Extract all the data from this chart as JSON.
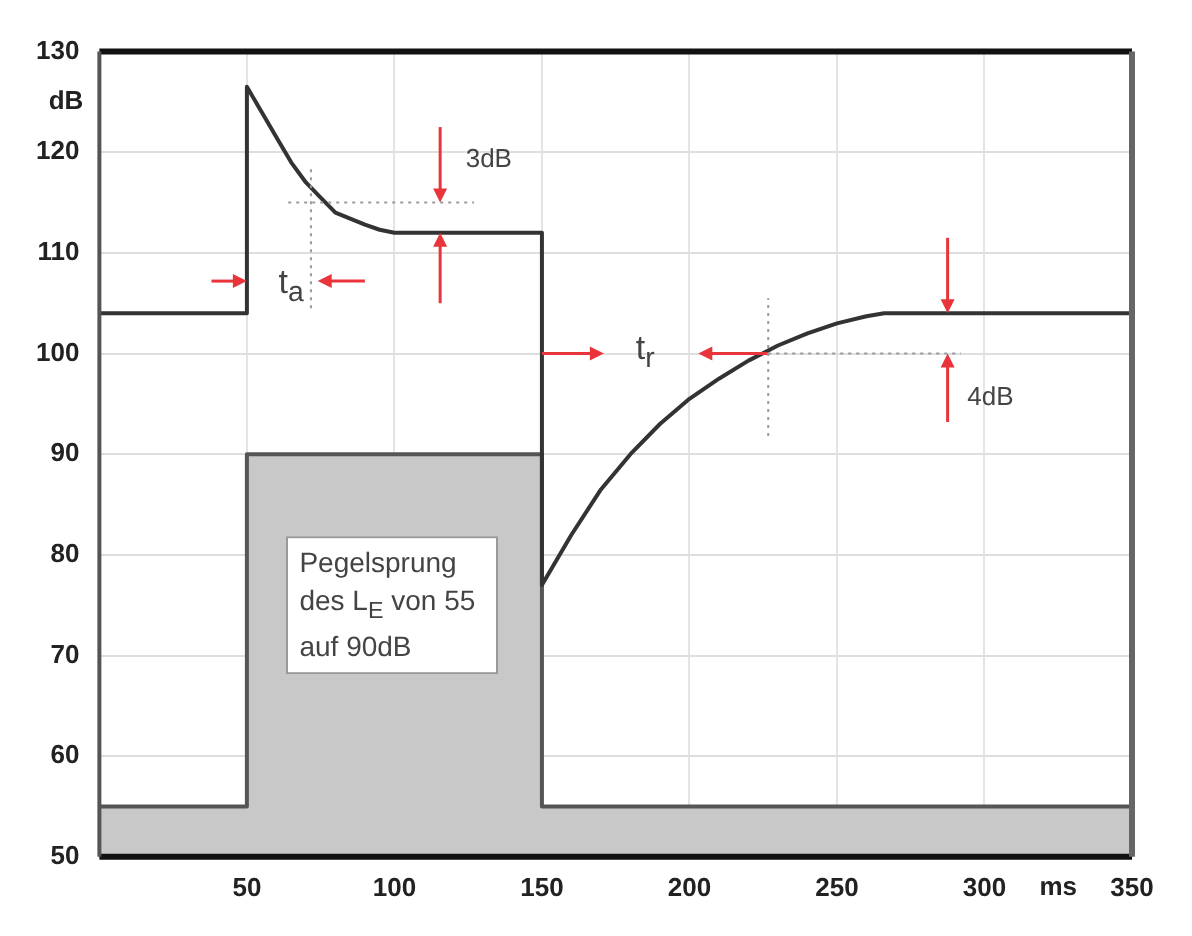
{
  "chart_data": {
    "type": "line",
    "xlabel": "ms",
    "ylabel": "dB",
    "xlim": [
      0,
      350
    ],
    "xticks": [
      50,
      100,
      150,
      200,
      250,
      300,
      350
    ],
    "ylim": [
      50,
      130
    ],
    "yticks": [
      50,
      60,
      70,
      80,
      90,
      100,
      110,
      120,
      130
    ],
    "grid": true,
    "legend": false,
    "marker": "none",
    "line_style": "solid",
    "series": [
      {
        "type": "area",
        "color": "#c8c8c8",
        "x": [
          0,
          50,
          50,
          150,
          150,
          350
        ],
        "values": [
          55,
          55,
          90,
          90,
          55,
          55
        ]
      },
      {
        "type": "line",
        "color": "#333333",
        "x": [
          0,
          50,
          50,
          55,
          60,
          65,
          70,
          75,
          80,
          90,
          95,
          100,
          150,
          150,
          160,
          170,
          180,
          190,
          200,
          210,
          220,
          230,
          240,
          250,
          260,
          266,
          350
        ],
        "values": [
          104,
          104,
          126.5,
          124,
          121.5,
          119,
          117,
          115.5,
          114,
          112.8,
          112.3,
          112,
          112,
          77,
          82,
          86.5,
          90,
          93,
          95.5,
          97.5,
          99.3,
          100.8,
          102,
          103,
          103.7,
          104,
          104
        ]
      }
    ],
    "annotations": [
      "3dB",
      "t$_{a}$",
      {
        "text": "t$_{r}$",
        "x": 150,
        "y": 100
      },
      {
        "text": "4dB",
        "x": 287.5,
        "y": 104
      },
      "Pegelsprung des L$_{E}$ von 55 auf 90dB"
    ]
  }
}
